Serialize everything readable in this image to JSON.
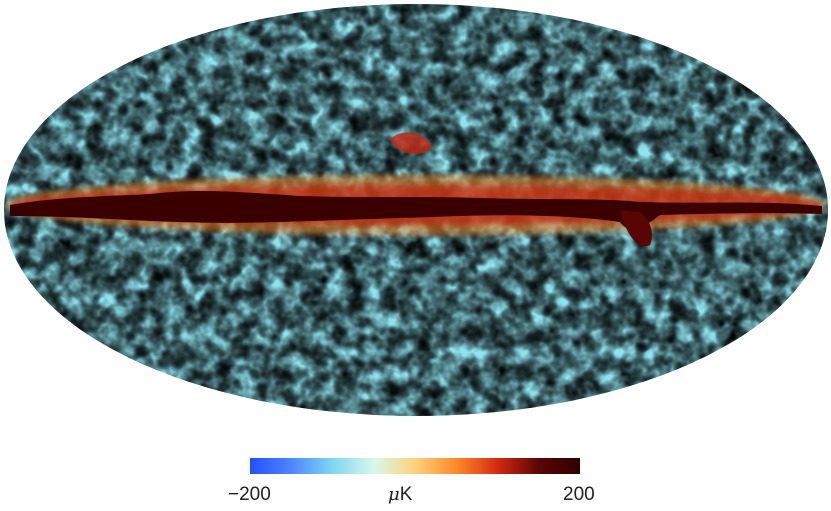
{
  "map": {
    "projection": "mollweide",
    "description_colors": [
      "#2552ff",
      "#5aa0ff",
      "#8ae8f2",
      "#f4f0d8",
      "#ffb830",
      "#e8501a",
      "#b4140a",
      "#3a0000"
    ]
  },
  "colorbar": {
    "min_label": "−200",
    "max_label": "200",
    "unit_symbol": "μ",
    "unit_suffix": "K",
    "min_value": -200,
    "max_value": 200,
    "stops": [
      "#2350ff",
      "#4d86ff",
      "#7fd7f0",
      "#d8f7ec",
      "#ffd27a",
      "#ff8a2a",
      "#d42a10",
      "#5a0505",
      "#300000"
    ]
  }
}
